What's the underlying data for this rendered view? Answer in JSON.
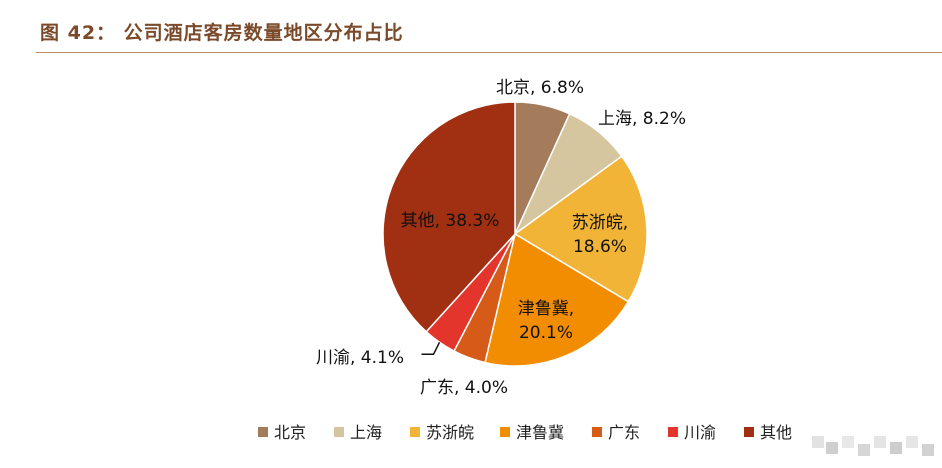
{
  "header": {
    "title": "图 42： 公司酒店客房数量地区分布占比"
  },
  "chart_data": {
    "type": "pie",
    "title": "图 42： 公司酒店客房数量地区分布占比",
    "legend": "bottom",
    "slices": [
      {
        "name": "北京",
        "value": 6.8,
        "label": "6.8%",
        "color": "#a47c5b"
      },
      {
        "name": "上海",
        "value": 8.2,
        "label": "8.2%",
        "color": "#d6c6a0"
      },
      {
        "name": "苏浙皖",
        "value": 18.6,
        "label": "18.6%",
        "color": "#f2b437"
      },
      {
        "name": "津鲁冀",
        "value": 20.1,
        "label": "20.1%",
        "color": "#f28c00"
      },
      {
        "name": "广东",
        "value": 4.0,
        "label": "4.0%",
        "color": "#d65a18"
      },
      {
        "name": "川渝",
        "value": 4.1,
        "label": "4.1%",
        "color": "#e4352c"
      },
      {
        "name": "其他",
        "value": 38.3,
        "label": "38.3%",
        "color": "#a12f12"
      }
    ]
  }
}
